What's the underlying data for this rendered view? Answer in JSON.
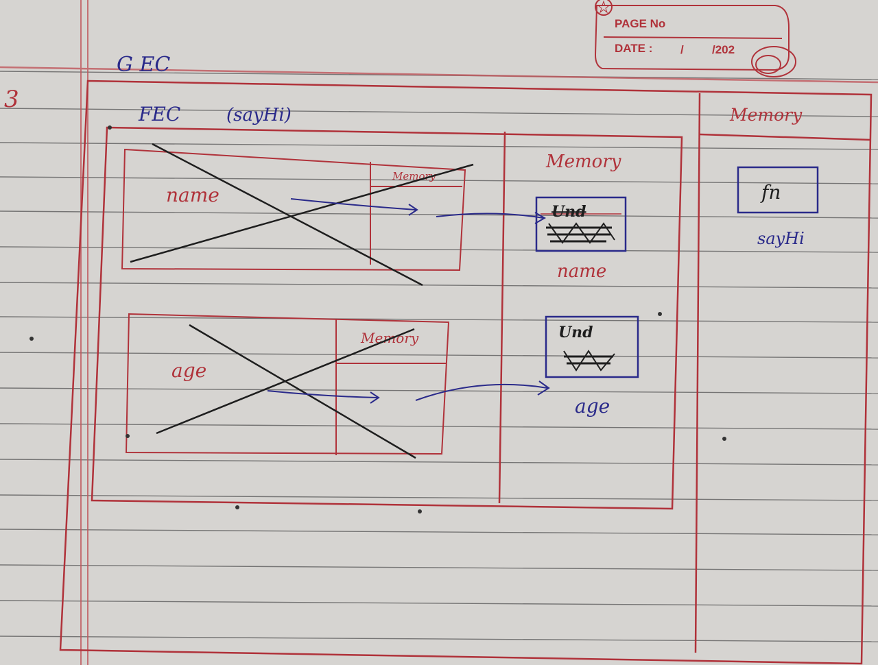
{
  "page_header": {
    "page_no_label": "PAGE No",
    "date_label": "DATE :",
    "date_sep1": "/",
    "date_sep2": "/202"
  },
  "margin_number": "3",
  "gec_label": "G EC",
  "fec_label": "FEC",
  "fec_fn_name": "(sayHi)",
  "fec_memory_label": "Memory",
  "global_memory_label": "Memory",
  "inner_boxes": [
    {
      "var_name": "name",
      "memory_label": "Memory"
    },
    {
      "var_name": "age",
      "memory_label": "Memory"
    }
  ],
  "fec_memory_cells": [
    {
      "value": "Und",
      "caption": "name"
    },
    {
      "value": "Und",
      "caption": "age"
    }
  ],
  "global_memory_cell": {
    "value": "fn",
    "caption": "sayHi"
  },
  "colors": {
    "paper": "#d6d4d1",
    "rule_line": "#4a4a4a",
    "red_ink": "#b0323a",
    "blue_ink": "#2a2a8a",
    "black_ink": "#1e1e1e"
  }
}
